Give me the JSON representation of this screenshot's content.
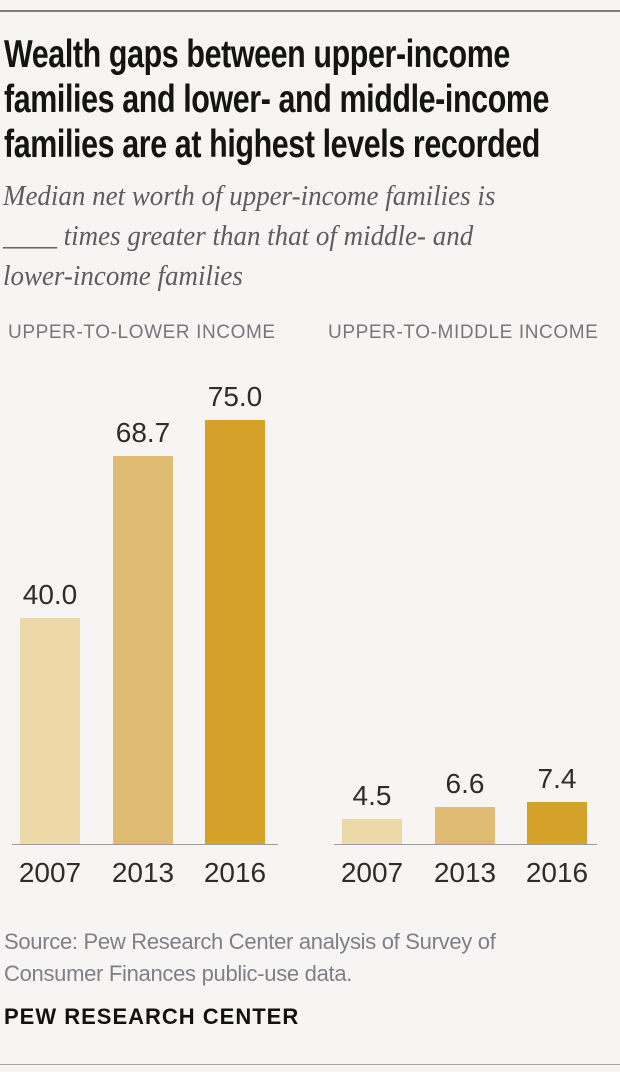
{
  "page": {
    "background": "#f6f5f3"
  },
  "header": {
    "title_lines": [
      "Wealth gaps between upper-income",
      "families and lower- and middle-income",
      "families are at highest levels recorded"
    ],
    "subtitle_lines": [
      "Median net worth of upper-income families is",
      "____ times greater than that of middle- and",
      "lower-income families"
    ]
  },
  "chart_data": [
    {
      "type": "bar",
      "section_label": "UPPER-TO-LOWER INCOME",
      "categories": [
        "2007",
        "2013",
        "2016"
      ],
      "values": [
        40.0,
        68.7,
        75.0
      ],
      "value_labels": [
        "40.0",
        "68.7",
        "75.0"
      ],
      "colors": [
        "#ecd9a7",
        "#e0bc73",
        "#d4a228"
      ],
      "ylim": [
        0,
        80
      ],
      "grid": false,
      "legend": "none"
    },
    {
      "type": "bar",
      "section_label": "UPPER-TO-MIDDLE INCOME",
      "categories": [
        "2007",
        "2013",
        "2016"
      ],
      "values": [
        4.5,
        6.6,
        7.4
      ],
      "value_labels": [
        "4.5",
        "6.6",
        "7.4"
      ],
      "colors": [
        "#ecd9a7",
        "#e0bc73",
        "#d4a228"
      ],
      "ylim": [
        0,
        80
      ],
      "grid": false,
      "legend": "none"
    }
  ],
  "footer": {
    "source_lines": [
      "Source: Pew Research Center analysis of Survey of",
      "Consumer Finances public-use data."
    ],
    "brand": "PEW RESEARCH CENTER"
  }
}
